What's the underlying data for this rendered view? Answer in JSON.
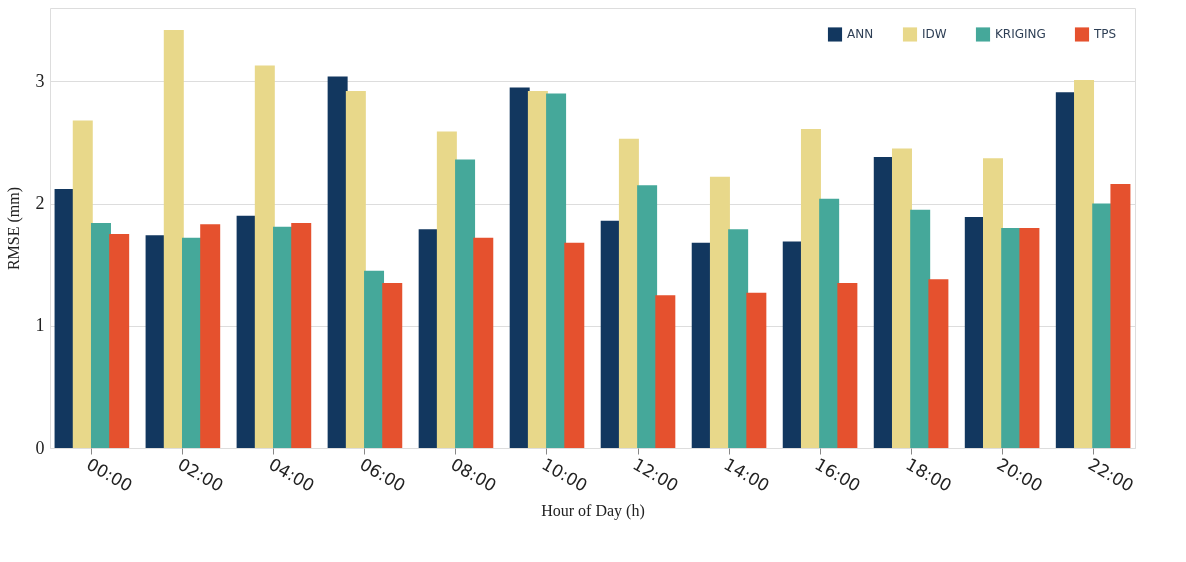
{
  "chart_data": {
    "type": "bar",
    "xlabel": "Hour of Day (h)",
    "ylabel": "RMSE (mm)",
    "categories": [
      "00:00",
      "02:00",
      "04:00",
      "06:00",
      "08:00",
      "10:00",
      "12:00",
      "14:00",
      "16:00",
      "18:00",
      "20:00",
      "22:00"
    ],
    "series": [
      {
        "name": "ANN",
        "color": "#12375f",
        "values": [
          2.12,
          1.74,
          1.9,
          3.04,
          1.79,
          2.95,
          1.86,
          1.68,
          1.69,
          2.38,
          1.89,
          2.91
        ]
      },
      {
        "name": "IDW",
        "color": "#e8d88a",
        "values": [
          2.68,
          3.42,
          3.13,
          2.92,
          2.59,
          2.92,
          2.53,
          2.22,
          2.61,
          2.45,
          2.37,
          3.01
        ]
      },
      {
        "name": "KRIGING",
        "color": "#45a89a",
        "values": [
          1.84,
          1.72,
          1.81,
          1.45,
          2.36,
          2.9,
          2.15,
          1.79,
          2.04,
          1.95,
          1.8,
          2.0
        ]
      },
      {
        "name": "TPS",
        "color": "#e5512e",
        "values": [
          1.75,
          1.83,
          1.84,
          1.35,
          1.72,
          1.68,
          1.25,
          1.27,
          1.35,
          1.38,
          1.8,
          2.16
        ]
      }
    ],
    "ylim": [
      0,
      3.6
    ],
    "yticks": [
      0,
      1,
      2,
      3
    ],
    "grid": "y",
    "legend": "top right"
  }
}
